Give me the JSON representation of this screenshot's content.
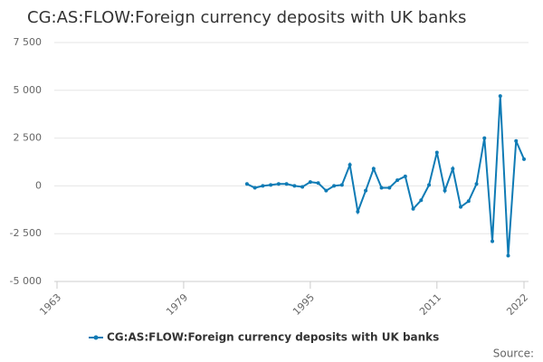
{
  "chart_data": {
    "type": "line",
    "title": "CG:AS:FLOW:Foreign currency deposits with UK banks",
    "x": [
      1987,
      1988,
      1989,
      1990,
      1991,
      1992,
      1993,
      1994,
      1995,
      1996,
      1997,
      1998,
      1999,
      2000,
      2001,
      2002,
      2003,
      2004,
      2005,
      2006,
      2007,
      2008,
      2009,
      2010,
      2011,
      2012,
      2013,
      2014,
      2015,
      2016,
      2017,
      2018,
      2019,
      2020,
      2021,
      2022
    ],
    "series": [
      {
        "name": "CG:AS:FLOW:Foreign currency deposits with UK banks",
        "color": "#0f7bb5",
        "values": [
          100,
          -100,
          0,
          50,
          100,
          100,
          0,
          -50,
          200,
          150,
          -250,
          0,
          50,
          1100,
          -1350,
          -250,
          900,
          -100,
          -100,
          300,
          500,
          -1200,
          -750,
          50,
          1750,
          -250,
          900,
          -1100,
          -800,
          100,
          2500,
          -2900,
          4700,
          -3650,
          2350,
          1400
        ]
      }
    ],
    "xlim": [
      1963,
      2022
    ],
    "xticks": [
      1963,
      1979,
      1995,
      2011,
      2022
    ],
    "ylim": [
      -5000,
      7500
    ],
    "yticks": [
      {
        "value": -5000,
        "label": "-5 000"
      },
      {
        "value": -2500,
        "label": "-2 500"
      },
      0,
      {
        "value": 2500,
        "label": "2 500"
      },
      {
        "value": 5000,
        "label": "5 000"
      },
      {
        "value": 7500,
        "label": "7 500"
      }
    ],
    "grid": true,
    "source": "Source:"
  }
}
